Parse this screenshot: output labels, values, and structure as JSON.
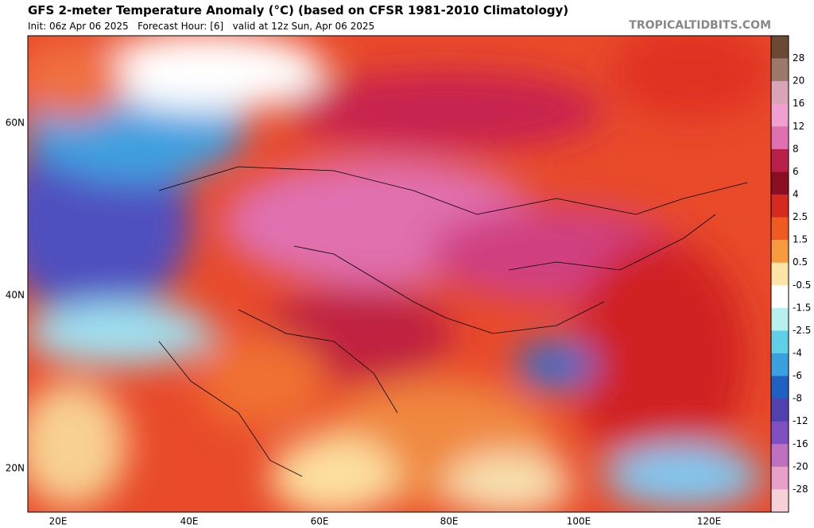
{
  "header": {
    "title": "GFS 2-meter Temperature Anomaly (°C) (based on CFSR 1981-2010 Climatology)",
    "subtitle": "Init: 06z Apr 06 2025   Forecast Hour: [6]   valid at 12z Sun, Apr 06 2025",
    "brand": "TROPICALTIDBITS.COM"
  },
  "map": {
    "lat_labels": [
      "60N",
      "40N",
      "20N"
    ],
    "lon_labels": [
      "20E",
      "40E",
      "60E",
      "80E",
      "100E",
      "120E"
    ]
  },
  "colorbar": {
    "labels": [
      "28",
      "20",
      "16",
      "12",
      "8",
      "6",
      "4",
      "2.5",
      "1.5",
      "0.5",
      "-0.5",
      "-1.5",
      "-2.5",
      "-4",
      "-6",
      "-8",
      "-12",
      "-16",
      "-20",
      "-28"
    ],
    "colors": [
      "#6b4a35",
      "#9c7a6a",
      "#d9a3b8",
      "#f0a0d0",
      "#e070b0",
      "#b8204a",
      "#8c0e22",
      "#d42a20",
      "#f05a20",
      "#f89a40",
      "#fde5a8",
      "#ffffff",
      "#b8f0f0",
      "#60d0e8",
      "#3aa0e0",
      "#2060c0",
      "#5040b0",
      "#8050c0",
      "#c070c0",
      "#e8a0c8",
      "#f8d0d8"
    ]
  }
}
